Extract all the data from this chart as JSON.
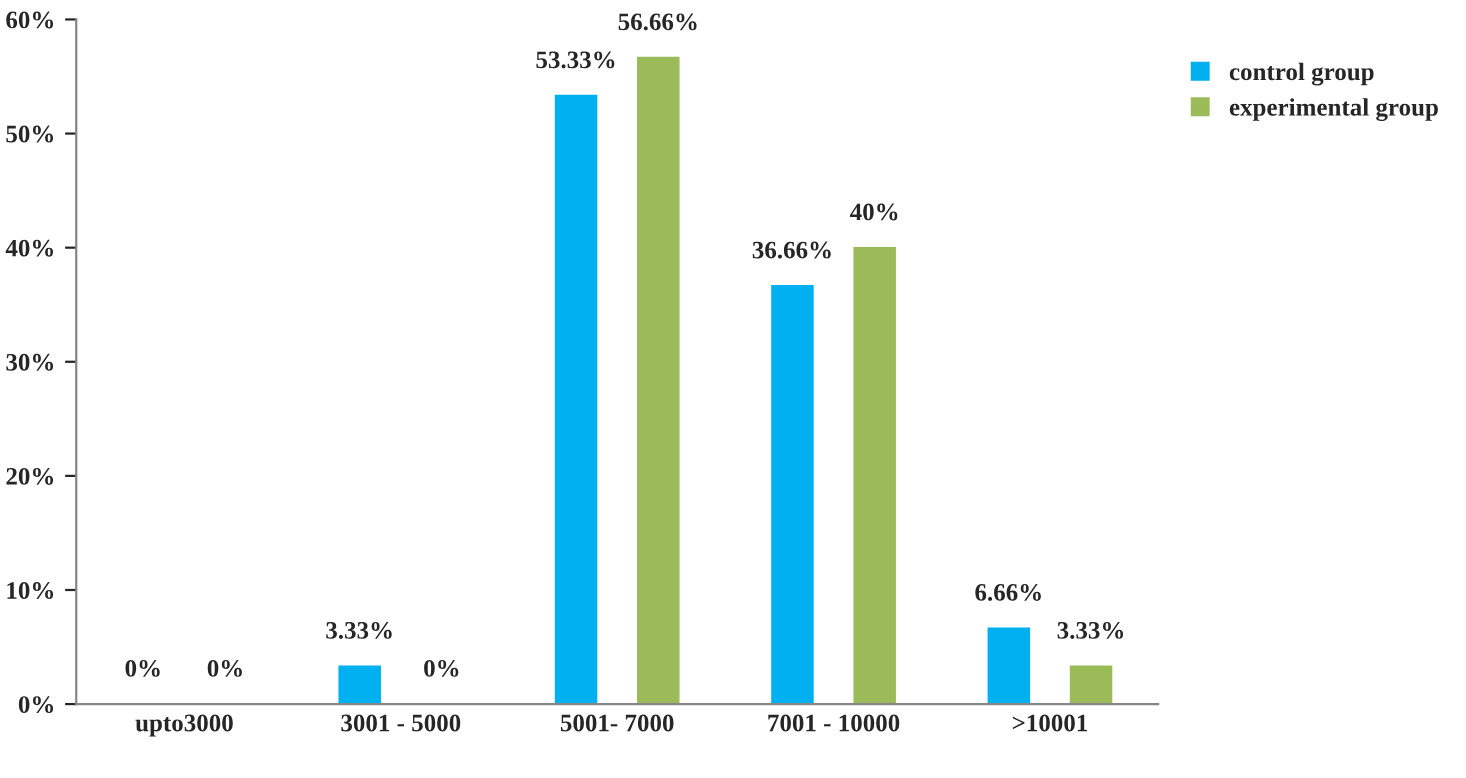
{
  "chart_data": {
    "type": "bar",
    "categories": [
      "upto3000",
      "3001 - 5000",
      "5001- 7000",
      "7001 - 10000",
      ">10001"
    ],
    "series": [
      {
        "name": "control group",
        "color": "#00b0f0",
        "values": [
          0,
          3.33,
          53.33,
          36.66,
          6.66
        ],
        "value_labels": [
          "0%",
          "3.33%",
          "53.33%",
          "36.66%",
          "6.66%"
        ]
      },
      {
        "name": "experimental group",
        "color": "#9bbb59",
        "values": [
          0,
          0,
          56.66,
          40,
          3.33
        ],
        "value_labels": [
          "0%",
          "0%",
          "56.66%",
          "40%",
          "3.33%"
        ]
      }
    ],
    "ylim": [
      0,
      60
    ],
    "yticks": [
      {
        "value": 0,
        "label": "0%"
      },
      {
        "value": 10,
        "label": "10%"
      },
      {
        "value": 20,
        "label": "20%"
      },
      {
        "value": 30,
        "label": "30%"
      },
      {
        "value": 40,
        "label": "40%"
      },
      {
        "value": 50,
        "label": "50%"
      },
      {
        "value": 60,
        "label": "60%"
      }
    ],
    "grid": false,
    "legend": "top right"
  }
}
